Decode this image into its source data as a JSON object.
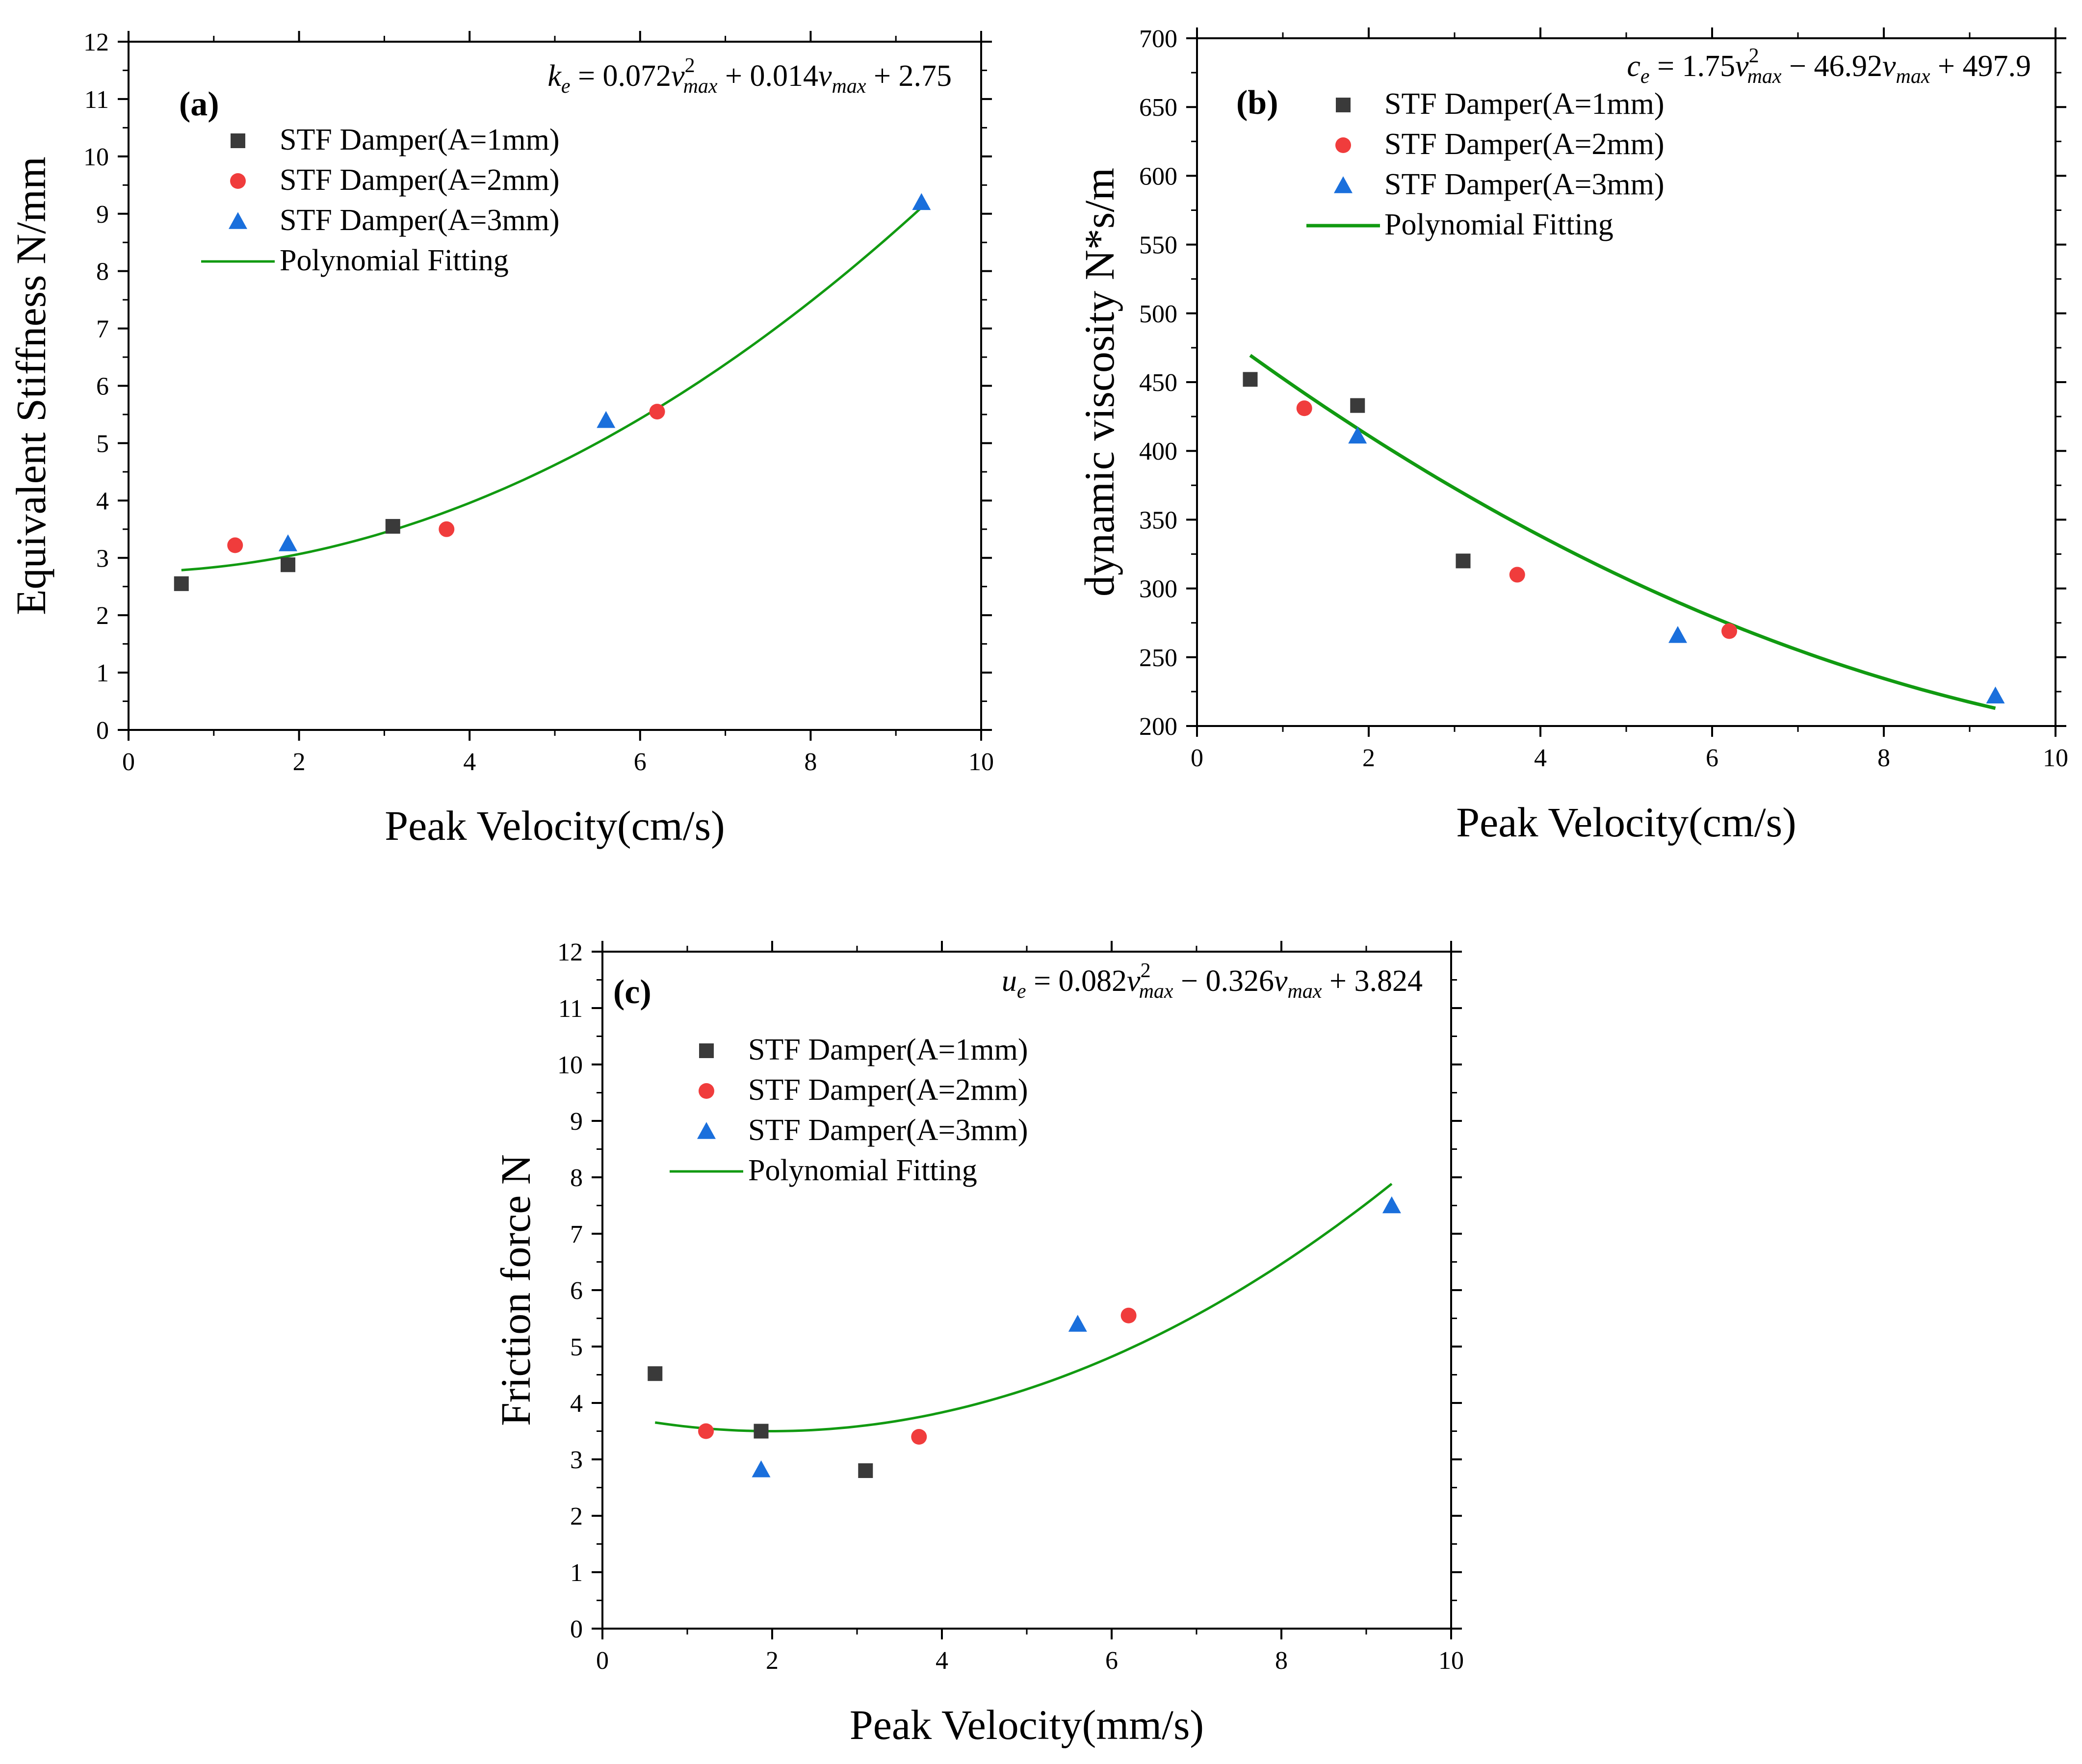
{
  "colors": {
    "black_series": "#3a3a3a",
    "red_series": "#f03c3c",
    "blue_series": "#1a6fdc",
    "fit_line": "#119a11"
  },
  "chart_data": [
    {
      "type": "scatter",
      "panel_label": "(a)",
      "equation": {
        "lhs": "k",
        "lhs_sub": "e",
        "c2": "0.072",
        "c1": "+ 0.014",
        "c0": "+ 2.75",
        "var": "v",
        "var_sub": "max",
        "power": "2"
      },
      "xlabel": "Peak Velocity(cm/s)",
      "ylabel": "Equivalent Stiffness N/mm",
      "xlim": [
        0,
        10
      ],
      "ylim": [
        0,
        12
      ],
      "xticks": [
        0,
        2,
        4,
        6,
        8,
        10
      ],
      "yticks": [
        0,
        1,
        2,
        3,
        4,
        5,
        6,
        7,
        8,
        9,
        10,
        11,
        12
      ],
      "legend_position": "upper-left",
      "series": [
        {
          "name": "STF Damper(A=1mm)",
          "marker": "square",
          "color": "#3a3a3a",
          "x": [
            0.62,
            1.87,
            3.1
          ],
          "y": [
            2.55,
            2.88,
            3.55
          ]
        },
        {
          "name": "STF Damper(A=2mm)",
          "marker": "circle",
          "color": "#f03c3c",
          "x": [
            1.25,
            3.73,
            6.2
          ],
          "y": [
            3.22,
            3.5,
            5.55
          ]
        },
        {
          "name": "STF Damper(A=3mm)",
          "marker": "triangle",
          "color": "#1a6fdc",
          "x": [
            1.87,
            5.6,
            9.3
          ],
          "y": [
            3.25,
            5.4,
            9.2
          ]
        }
      ],
      "fit": {
        "name": "Polynomial Fitting",
        "coefficients": [
          0.072,
          0.014,
          2.75
        ],
        "x_range": [
          0.62,
          9.3
        ],
        "color": "#119a11"
      }
    },
    {
      "type": "scatter",
      "panel_label": "(b)",
      "equation": {
        "lhs": "c",
        "lhs_sub": "e",
        "c2": "1.75",
        "c1": "− 46.92",
        "c0": "+ 497.9",
        "var": "v",
        "var_sub": "max",
        "power": "2"
      },
      "xlabel": "Peak Velocity(cm/s)",
      "ylabel": "dynamic viscosity N*s/m",
      "xlim": [
        0,
        10
      ],
      "ylim": [
        200,
        700
      ],
      "xticks": [
        0,
        2,
        4,
        6,
        8,
        10
      ],
      "yticks": [
        200,
        250,
        300,
        350,
        400,
        450,
        500,
        550,
        600,
        650,
        700
      ],
      "legend_position": "upper-left",
      "series": [
        {
          "name": "STF Damper(A=1mm)",
          "marker": "square",
          "color": "#3a3a3a",
          "x": [
            0.62,
            1.87,
            3.1
          ],
          "y": [
            452,
            433,
            320
          ]
        },
        {
          "name": "STF Damper(A=2mm)",
          "marker": "circle",
          "color": "#f03c3c",
          "x": [
            1.25,
            3.73,
            6.2
          ],
          "y": [
            431,
            310,
            269
          ]
        },
        {
          "name": "STF Damper(A=3mm)",
          "marker": "triangle",
          "color": "#1a6fdc",
          "x": [
            1.87,
            5.6,
            9.3
          ],
          "y": [
            411,
            266,
            222
          ]
        }
      ],
      "fit": {
        "name": "Polynomial Fitting",
        "coefficients": [
          1.75,
          -46.92,
          497.9
        ],
        "x_range": [
          0.62,
          9.3
        ],
        "color": "#119a11"
      }
    },
    {
      "type": "scatter",
      "panel_label": "(c)",
      "equation": {
        "lhs": "u",
        "lhs_sub": "e",
        "c2": "0.082",
        "c1": "− 0.326",
        "c0": "+ 3.824",
        "var": "v",
        "var_sub": "max",
        "power": "2"
      },
      "xlabel": "Peak Velocity(mm/s)",
      "ylabel": "Friction force N",
      "xlim": [
        0,
        10
      ],
      "ylim": [
        0,
        12
      ],
      "xticks": [
        0,
        2,
        4,
        6,
        8,
        10
      ],
      "yticks": [
        0,
        1,
        2,
        3,
        4,
        5,
        6,
        7,
        8,
        9,
        10,
        11,
        12
      ],
      "legend_position": "upper-left",
      "series": [
        {
          "name": "STF Damper(A=1mm)",
          "marker": "square",
          "color": "#3a3a3a",
          "x": [
            0.62,
            1.87,
            3.1
          ],
          "y": [
            4.52,
            3.5,
            2.8
          ]
        },
        {
          "name": "STF Damper(A=2mm)",
          "marker": "circle",
          "color": "#f03c3c",
          "x": [
            1.22,
            3.73,
            6.2
          ],
          "y": [
            3.5,
            3.4,
            5.55
          ]
        },
        {
          "name": "STF Damper(A=3mm)",
          "marker": "triangle",
          "color": "#1a6fdc",
          "x": [
            1.87,
            5.6,
            9.3
          ],
          "y": [
            2.82,
            5.4,
            7.5
          ]
        }
      ],
      "fit": {
        "name": "Polynomial Fitting",
        "coefficients": [
          0.082,
          -0.326,
          3.824
        ],
        "x_range": [
          0.62,
          9.3
        ],
        "color": "#119a11"
      }
    }
  ]
}
